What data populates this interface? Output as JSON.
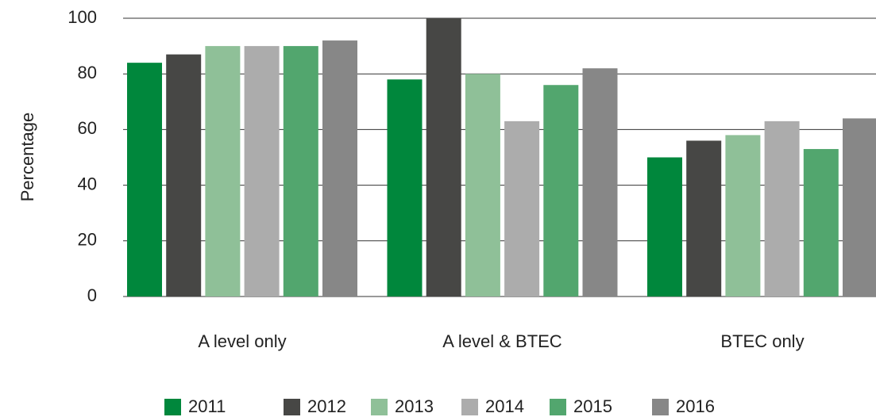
{
  "chart_data": {
    "type": "bar",
    "y_label": "Percentage",
    "categories": [
      "A level only",
      "A level & BTEC",
      "BTEC only"
    ],
    "series": [
      {
        "name": "2011",
        "color": "#00873c",
        "values": [
          84,
          78,
          50
        ]
      },
      {
        "name": "2012",
        "color": "#474745",
        "values": [
          87,
          100,
          56
        ]
      },
      {
        "name": "2013",
        "color": "#8fc098",
        "values": [
          90,
          80,
          58
        ]
      },
      {
        "name": "2014",
        "color": "#acacac",
        "values": [
          90,
          63,
          63
        ]
      },
      {
        "name": "2015",
        "color": "#52a66e",
        "values": [
          90,
          76,
          53
        ]
      },
      {
        "name": "2016",
        "color": "#878787",
        "values": [
          92,
          82,
          64
        ]
      }
    ],
    "ylim": [
      0,
      100
    ],
    "yticks": [
      0,
      20,
      40,
      60,
      80,
      100
    ],
    "grid": true,
    "legend": "bottom"
  }
}
